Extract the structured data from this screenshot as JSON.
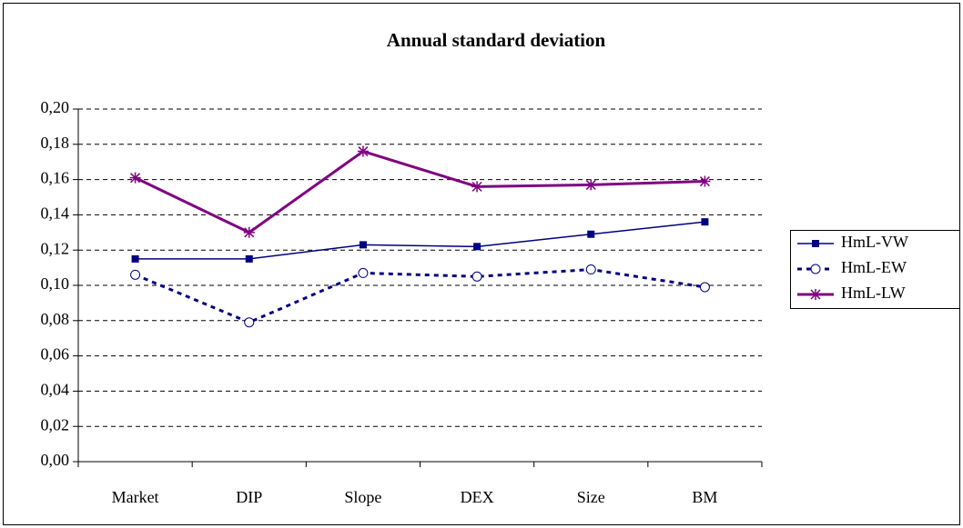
{
  "chart_data": {
    "type": "line",
    "title": "Annual standard deviation",
    "categories": [
      "Market",
      "DIP",
      "Slope",
      "DEX",
      "Size",
      "BM"
    ],
    "series": [
      {
        "name": "HmL-VW",
        "color": "#000080",
        "marker": "square",
        "dash": false,
        "values": [
          0.115,
          0.115,
          0.123,
          0.122,
          0.129,
          0.136
        ]
      },
      {
        "name": "HmL-EW",
        "color": "#000080",
        "marker": "circle",
        "dash": true,
        "values": [
          0.106,
          0.079,
          0.107,
          0.105,
          0.109,
          0.099
        ]
      },
      {
        "name": "HmL-LW",
        "color": "#800080",
        "marker": "star",
        "dash": false,
        "values": [
          0.161,
          0.13,
          0.176,
          0.156,
          0.157,
          0.159
        ]
      }
    ],
    "ylim": [
      0,
      0.2
    ],
    "yticks": [
      {
        "value": 0,
        "label": "0,00"
      },
      {
        "value": 0.02,
        "label": "0,02"
      },
      {
        "value": 0.04,
        "label": "0,04"
      },
      {
        "value": 0.06,
        "label": "0,06"
      },
      {
        "value": 0.08,
        "label": "0,08"
      },
      {
        "value": 0.1,
        "label": "0,10"
      },
      {
        "value": 0.12,
        "label": "0,12"
      },
      {
        "value": 0.14,
        "label": "0,14"
      },
      {
        "value": 0.16,
        "label": "0,16"
      },
      {
        "value": 0.18,
        "label": "0,18"
      },
      {
        "value": 0.2,
        "label": "0,20"
      }
    ],
    "grid": true,
    "legend": "right"
  }
}
